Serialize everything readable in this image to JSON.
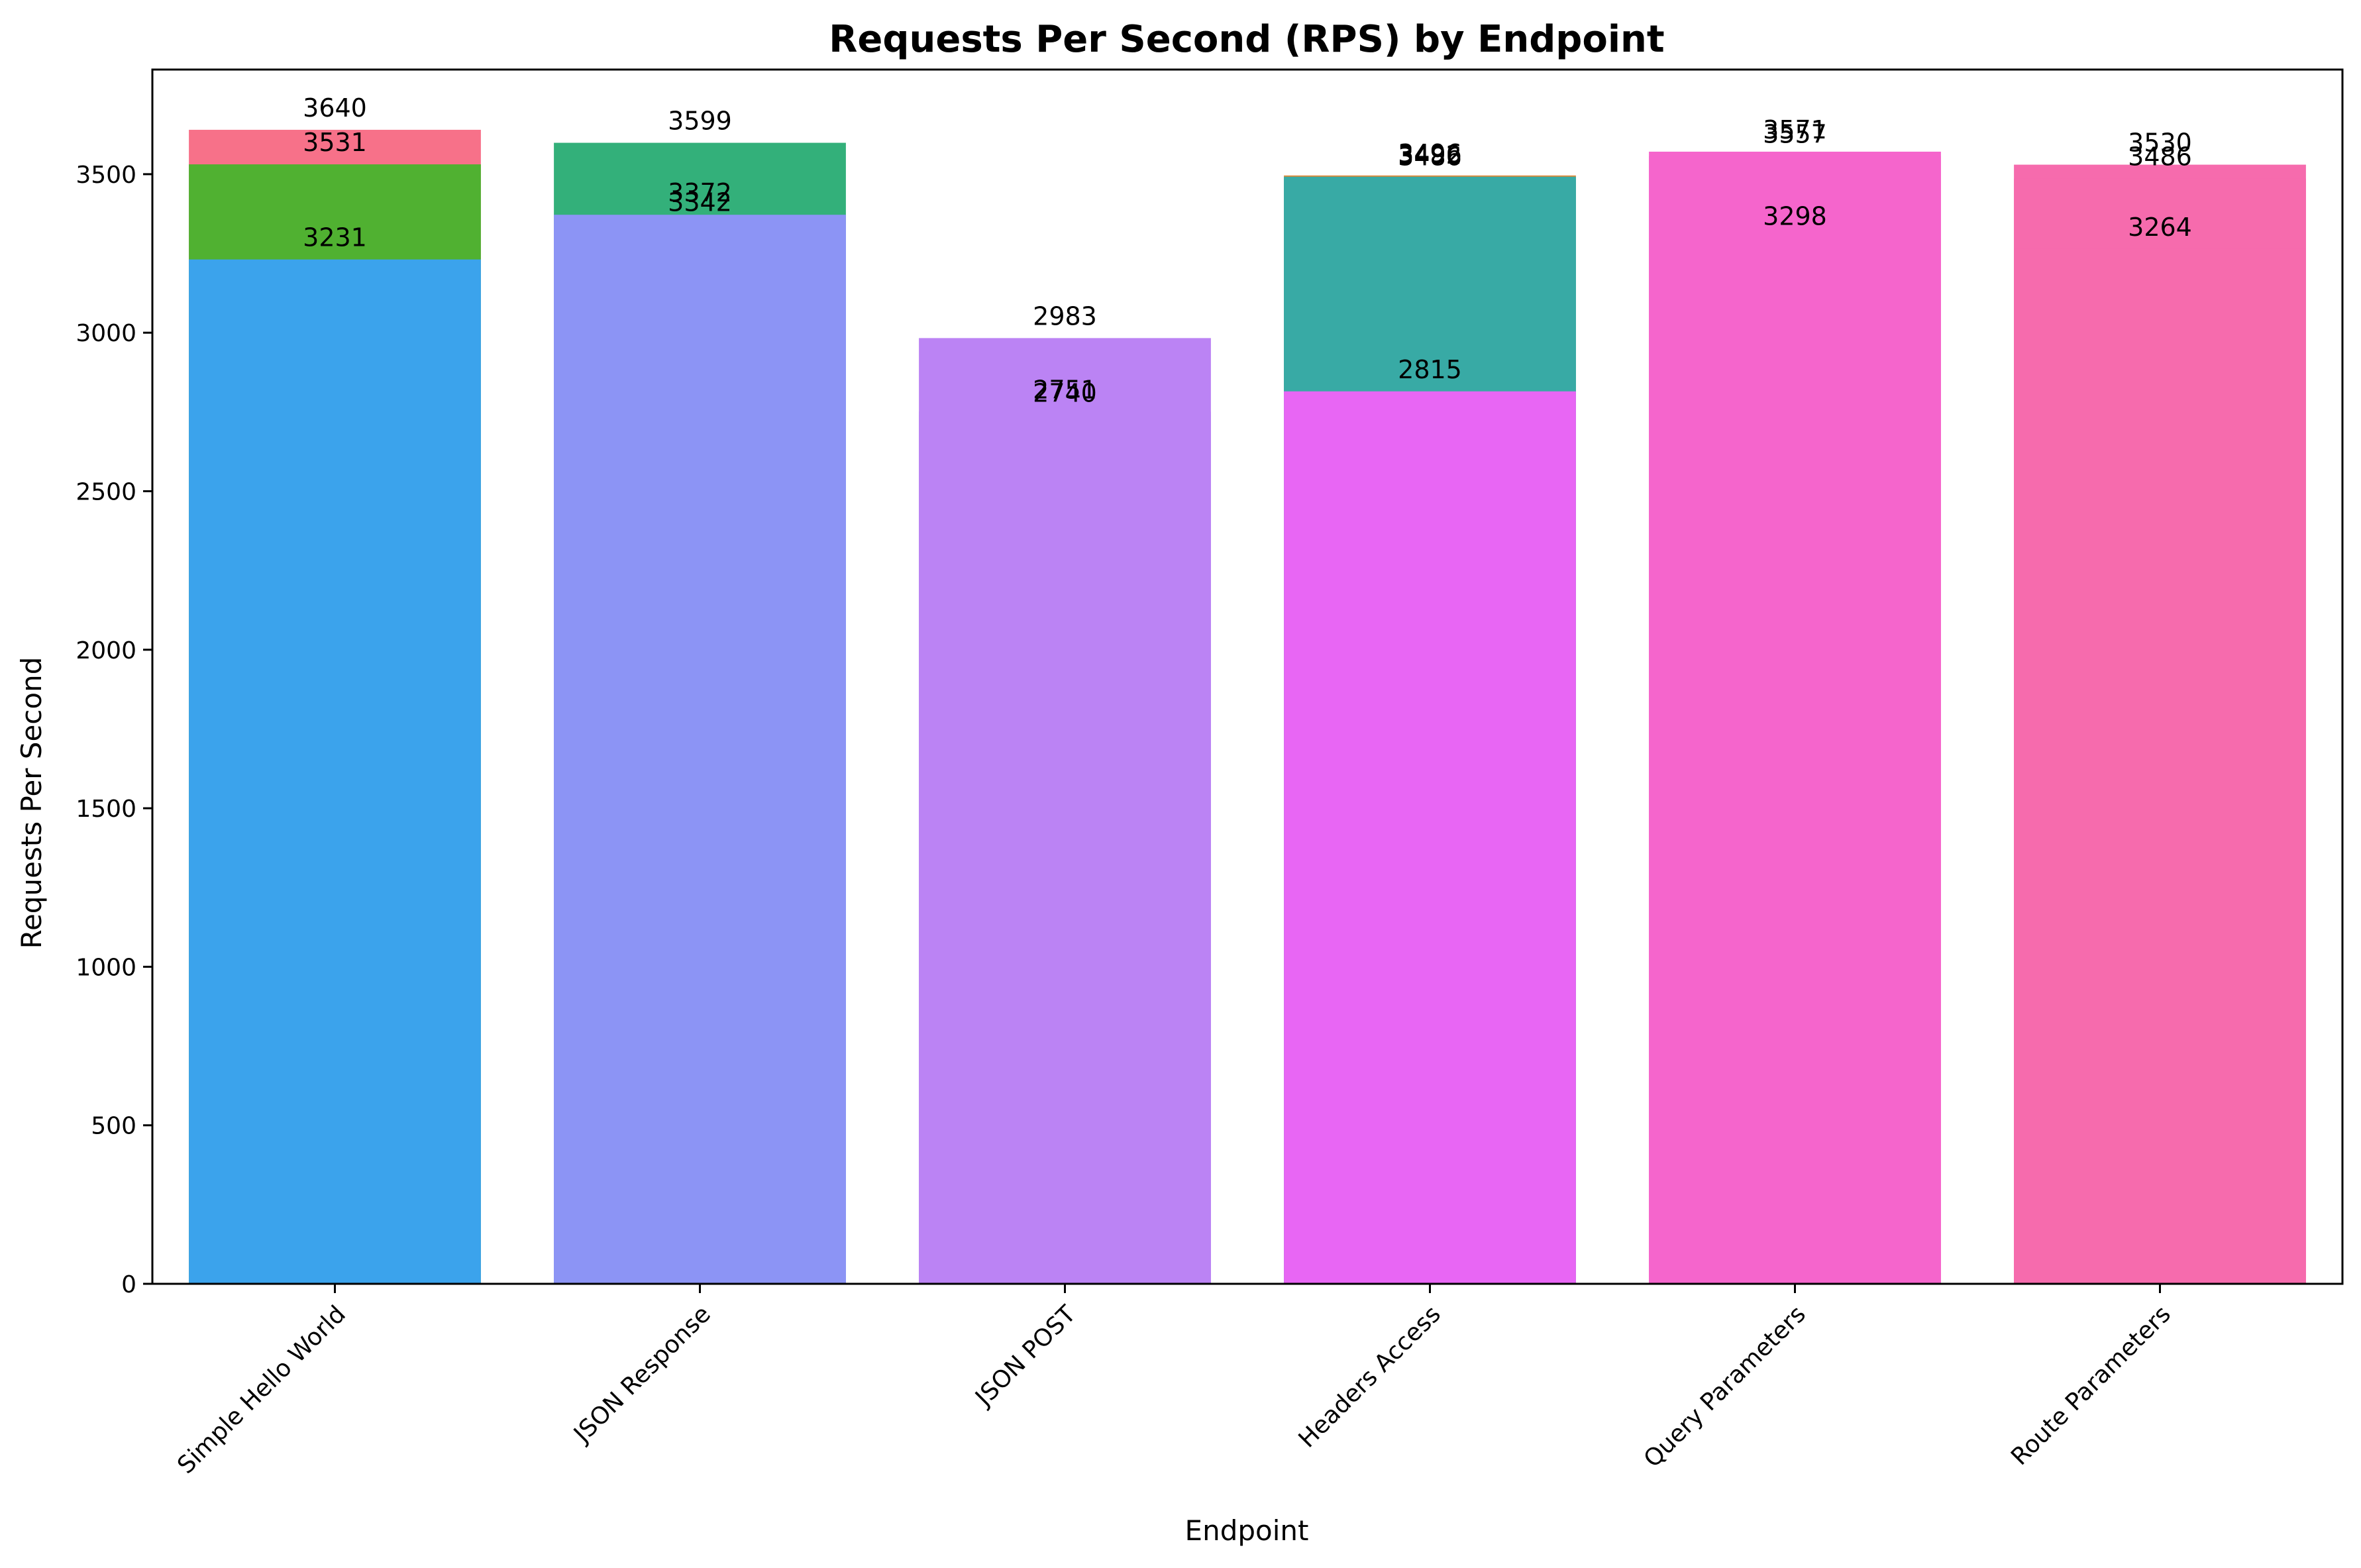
{
  "chart_data": {
    "type": "bar",
    "title": "Requests Per Second (RPS) by Endpoint",
    "xlabel": "Endpoint",
    "ylabel": "Requests Per Second",
    "ylim": [
      0,
      3830
    ],
    "yticks": [
      0,
      500,
      1000,
      1500,
      2000,
      2500,
      3000,
      3500
    ],
    "grid": false,
    "legend": "none",
    "categories": [
      "Simple Hello World",
      "JSON Response",
      "JSON POST",
      "Headers Access",
      "Query Parameters",
      "Route Parameters"
    ],
    "bars": [
      {
        "category": "Simple Hello World",
        "layers": [
          {
            "value": 3640,
            "color": "#f77189"
          },
          {
            "value": 3531,
            "color": "#50b131"
          },
          {
            "value": 3231,
            "color": "#3ba3ec"
          }
        ]
      },
      {
        "category": "JSON Response",
        "layers": [
          {
            "value": 3599,
            "color": "#33b07a"
          },
          {
            "value": 3372,
            "color": "#8c94f5"
          },
          {
            "value": 3342,
            "color": "#8c94f5"
          }
        ]
      },
      {
        "category": "JSON POST",
        "layers": [
          {
            "value": 2983,
            "color": "#bb83f4"
          },
          {
            "value": 2751,
            "color": "#bb83f4"
          },
          {
            "value": 2740,
            "color": "#bb83f4"
          }
        ]
      },
      {
        "category": "Headers Access",
        "layers": [
          {
            "value": 3496,
            "color": "#dd8a3a"
          },
          {
            "value": 3492,
            "color": "#38aaa5"
          },
          {
            "value": 3486,
            "color": "#38aaa5"
          },
          {
            "value": 2815,
            "color": "#e866f4"
          }
        ]
      },
      {
        "category": "Query Parameters",
        "layers": [
          {
            "value": 3571,
            "color": "#f565cc"
          },
          {
            "value": 3557,
            "color": "#f565cc"
          },
          {
            "value": 3298,
            "color": "#f565cc"
          }
        ]
      },
      {
        "category": "Route Parameters",
        "layers": [
          {
            "value": 3530,
            "color": "#f66bad"
          },
          {
            "value": 3486,
            "color": "#f66bad"
          },
          {
            "value": 3264,
            "color": "#f66bad"
          }
        ]
      }
    ]
  }
}
